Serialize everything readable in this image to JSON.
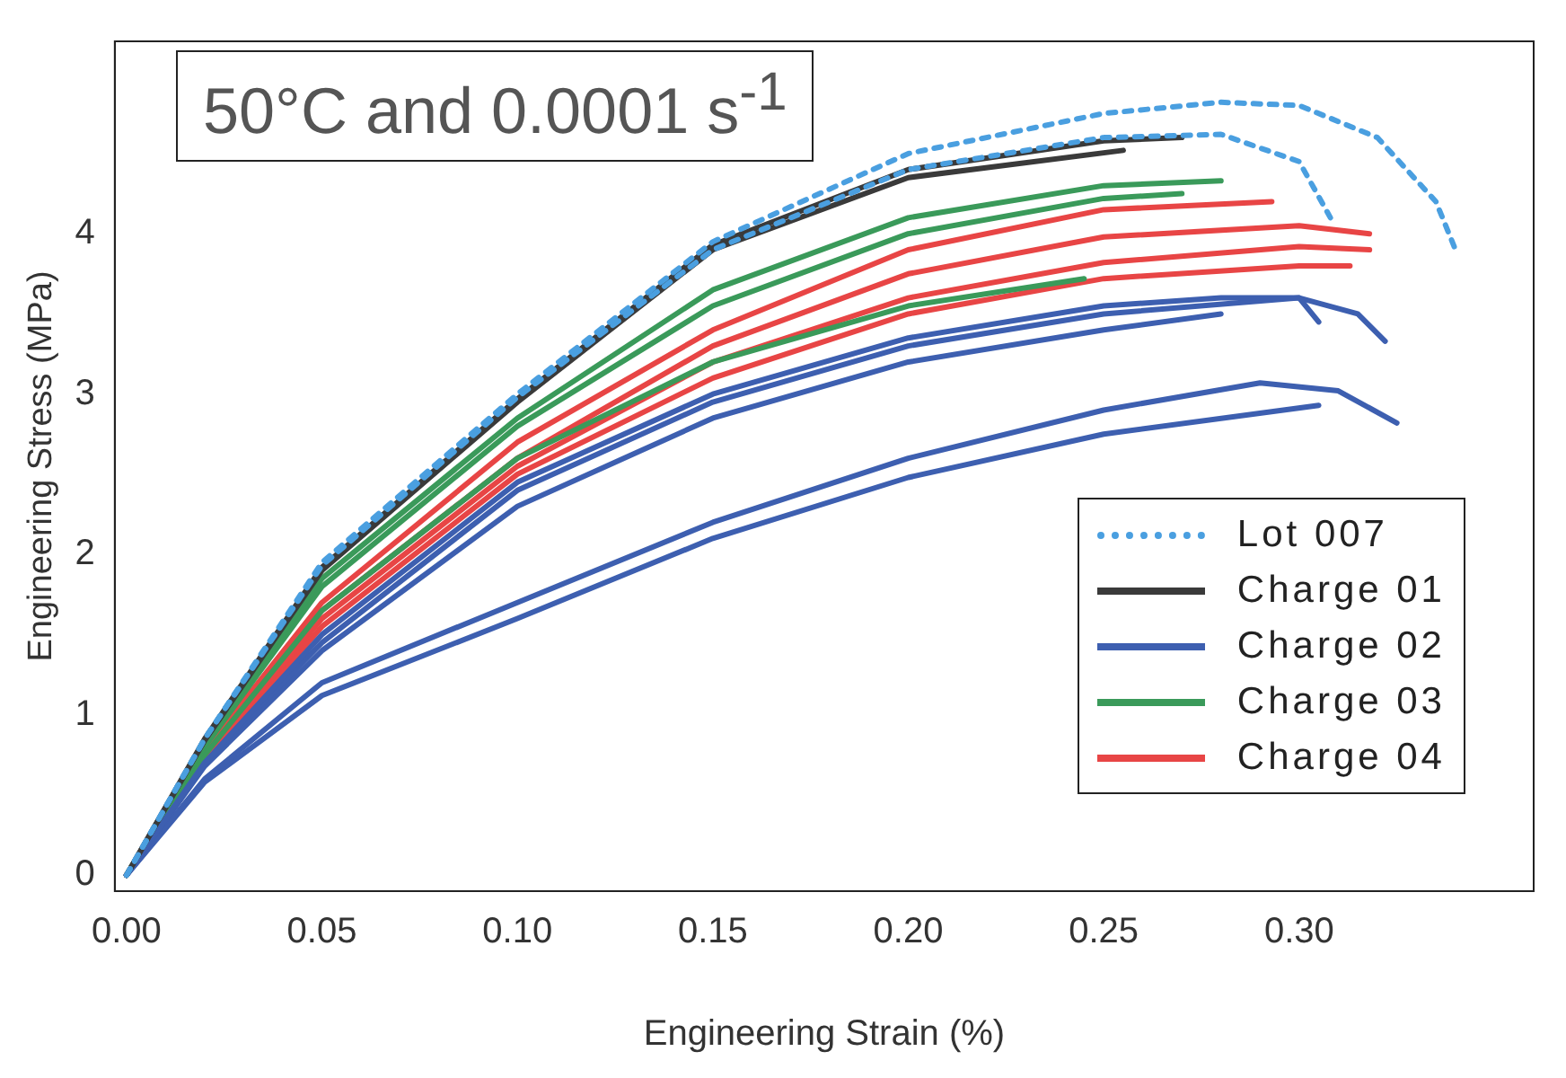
{
  "chart_data": {
    "type": "line",
    "title": "50°C and 0.0001 s$^{-1}$",
    "xlabel": "Engineering Strain (%)",
    "ylabel": "Engineering Stress (MPa)",
    "xlim": [
      -0.003,
      0.36
    ],
    "ylim": [
      -0.1,
      5.2
    ],
    "xticks": [
      {
        "value": 0,
        "label": "0.00"
      },
      {
        "value": 0.05,
        "label": "0.05"
      },
      {
        "value": 0.1,
        "label": "0.10"
      },
      {
        "value": 0.15,
        "label": "0.15"
      },
      {
        "value": 0.2,
        "label": "0.20"
      },
      {
        "value": 0.25,
        "label": "0.25"
      },
      {
        "value": 0.3,
        "label": "0.30"
      }
    ],
    "yticks": [
      0,
      1,
      2,
      3,
      4
    ],
    "grid": false,
    "legend": "bottom right",
    "marker": "none",
    "series": [
      {
        "name": "Lot 007",
        "color": "#4a9fe0",
        "line_style": "dotted",
        "x": [
          0,
          0.02,
          0.05,
          0.1,
          0.15,
          0.2,
          0.25,
          0.28,
          0.3,
          0.32,
          0.335,
          0.34
        ],
        "values": [
          0,
          0.85,
          1.95,
          3.0,
          3.95,
          4.5,
          4.75,
          4.82,
          4.8,
          4.6,
          4.2,
          3.9
        ]
      },
      {
        "color": "#4a9fe0",
        "line_style": "dotted",
        "x": [
          0,
          0.02,
          0.05,
          0.1,
          0.15,
          0.2,
          0.25,
          0.28,
          0.3,
          0.308
        ],
        "values": [
          0,
          0.85,
          1.93,
          2.98,
          3.9,
          4.4,
          4.6,
          4.62,
          4.45,
          4.1
        ]
      },
      {
        "name": "Charge 01",
        "color": "#3a3a3a",
        "line_style": "solid",
        "x": [
          0,
          0.02,
          0.05,
          0.1,
          0.15,
          0.2,
          0.25,
          0.27
        ],
        "values": [
          0,
          0.85,
          1.92,
          2.97,
          3.93,
          4.4,
          4.58,
          4.6
        ]
      },
      {
        "color": "#3a3a3a",
        "line_style": "solid",
        "x": [
          0,
          0.02,
          0.05,
          0.1,
          0.15,
          0.2,
          0.255
        ],
        "values": [
          0,
          0.84,
          1.9,
          2.95,
          3.9,
          4.35,
          4.52
        ]
      },
      {
        "name": "Charge 02",
        "color": "#3d5fb0",
        "line_style": "solid",
        "x": [
          0,
          0.02,
          0.05,
          0.1,
          0.15,
          0.2,
          0.25,
          0.28,
          0.3,
          0.305
        ],
        "values": [
          0,
          0.7,
          1.5,
          2.45,
          3.0,
          3.35,
          3.55,
          3.6,
          3.6,
          3.45
        ]
      },
      {
        "color": "#3d5fb0",
        "line_style": "solid",
        "x": [
          0,
          0.02,
          0.05,
          0.1,
          0.15,
          0.2,
          0.25,
          0.3,
          0.315,
          0.322
        ],
        "values": [
          0,
          0.7,
          1.45,
          2.4,
          2.95,
          3.3,
          3.5,
          3.6,
          3.5,
          3.33
        ]
      },
      {
        "color": "#3d5fb0",
        "line_style": "solid",
        "x": [
          0,
          0.02,
          0.05,
          0.1,
          0.15,
          0.2,
          0.25,
          0.28
        ],
        "values": [
          0,
          0.68,
          1.4,
          2.3,
          2.85,
          3.2,
          3.4,
          3.5
        ]
      },
      {
        "color": "#3d5fb0",
        "line_style": "solid",
        "x": [
          0,
          0.02,
          0.05,
          0.1,
          0.15,
          0.2,
          0.25,
          0.29,
          0.31,
          0.325
        ],
        "values": [
          0,
          0.6,
          1.2,
          1.7,
          2.2,
          2.6,
          2.9,
          3.07,
          3.02,
          2.82
        ]
      },
      {
        "color": "#3d5fb0",
        "line_style": "solid",
        "x": [
          0,
          0.02,
          0.05,
          0.1,
          0.15,
          0.2,
          0.25,
          0.305
        ],
        "values": [
          0,
          0.58,
          1.12,
          1.6,
          2.1,
          2.48,
          2.75,
          2.93
        ]
      },
      {
        "name": "Charge 03",
        "color": "#3a9a5a",
        "line_style": "solid",
        "x": [
          0,
          0.02,
          0.05,
          0.1,
          0.15,
          0.2,
          0.25,
          0.28
        ],
        "values": [
          0,
          0.82,
          1.85,
          2.85,
          3.65,
          4.1,
          4.3,
          4.33
        ]
      },
      {
        "color": "#3a9a5a",
        "line_style": "solid",
        "x": [
          0,
          0.02,
          0.05,
          0.1,
          0.15,
          0.2,
          0.25,
          0.27
        ],
        "values": [
          0,
          0.8,
          1.8,
          2.8,
          3.55,
          4.0,
          4.22,
          4.25
        ]
      },
      {
        "color": "#3a9a5a",
        "line_style": "solid",
        "x": [
          0,
          0.02,
          0.05,
          0.1,
          0.15,
          0.2,
          0.245
        ],
        "values": [
          0,
          0.75,
          1.65,
          2.6,
          3.2,
          3.55,
          3.72
        ]
      },
      {
        "name": "Charge 04",
        "color": "#e84545",
        "line_style": "solid",
        "x": [
          0,
          0.02,
          0.05,
          0.1,
          0.15,
          0.2,
          0.25,
          0.293
        ],
        "values": [
          0,
          0.78,
          1.7,
          2.7,
          3.4,
          3.9,
          4.15,
          4.2
        ]
      },
      {
        "color": "#e84545",
        "line_style": "solid",
        "x": [
          0,
          0.02,
          0.05,
          0.1,
          0.15,
          0.2,
          0.25,
          0.3,
          0.318
        ],
        "values": [
          0,
          0.75,
          1.65,
          2.6,
          3.3,
          3.75,
          3.98,
          4.05,
          4.0
        ]
      },
      {
        "color": "#e84545",
        "line_style": "solid",
        "x": [
          0,
          0.02,
          0.05,
          0.1,
          0.15,
          0.2,
          0.25,
          0.3,
          0.318
        ],
        "values": [
          0,
          0.73,
          1.6,
          2.55,
          3.2,
          3.6,
          3.82,
          3.92,
          3.9
        ]
      },
      {
        "color": "#e84545",
        "line_style": "solid",
        "x": [
          0,
          0.02,
          0.05,
          0.1,
          0.15,
          0.2,
          0.25,
          0.3,
          0.313
        ],
        "values": [
          0,
          0.72,
          1.55,
          2.5,
          3.1,
          3.5,
          3.72,
          3.8,
          3.8
        ]
      }
    ]
  }
}
